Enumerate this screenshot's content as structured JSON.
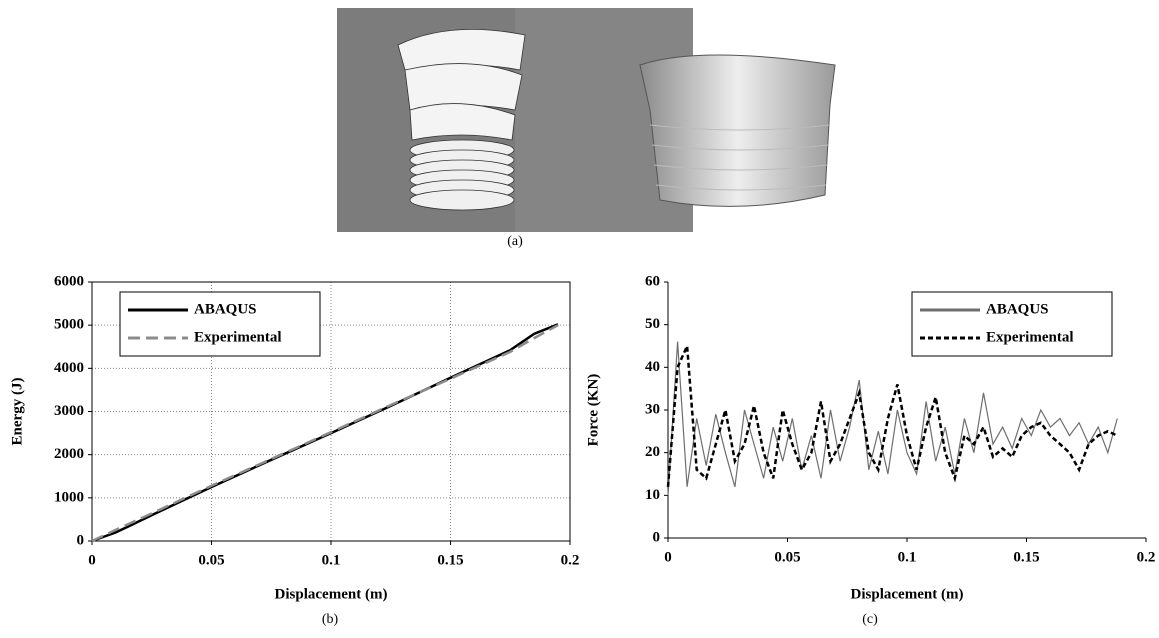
{
  "figure": {
    "panel_a_caption": "(a)"
  },
  "chart_data": [
    {
      "type": "line",
      "caption": "(b)",
      "xlabel": "Displacement (m)",
      "ylabel": "Energy (J)",
      "x": [
        0,
        0.01,
        0.025,
        0.05,
        0.075,
        0.1,
        0.125,
        0.15,
        0.175,
        0.185,
        0.195
      ],
      "series": [
        {
          "name": "ABAQUS",
          "color": "#000000",
          "style": "solid",
          "values": [
            0,
            200,
            600,
            1250,
            1880,
            2500,
            3130,
            3780,
            4420,
            4800,
            5020
          ]
        },
        {
          "name": "Experimental",
          "color": "#8c8c8c",
          "style": "dashed",
          "values": [
            0,
            260,
            640,
            1280,
            1900,
            2520,
            3150,
            3760,
            4380,
            4700,
            5000
          ]
        }
      ],
      "xlim": [
        0,
        0.2
      ],
      "ylim": [
        0,
        6000
      ],
      "xticks": [
        0,
        0.05,
        0.1,
        0.15,
        0.2
      ],
      "yticks": [
        0,
        1000,
        2000,
        3000,
        4000,
        5000,
        6000
      ],
      "grid": true,
      "legend": "upper left"
    },
    {
      "type": "line",
      "caption": "(c)",
      "xlabel": "Displacement (m)",
      "ylabel": "Force (KN)",
      "x": [
        0,
        0.004,
        0.008,
        0.012,
        0.016,
        0.02,
        0.024,
        0.028,
        0.032,
        0.036,
        0.04,
        0.044,
        0.048,
        0.052,
        0.056,
        0.06,
        0.064,
        0.068,
        0.072,
        0.076,
        0.08,
        0.084,
        0.088,
        0.092,
        0.096,
        0.1,
        0.104,
        0.108,
        0.112,
        0.116,
        0.12,
        0.124,
        0.128,
        0.132,
        0.136,
        0.14,
        0.144,
        0.148,
        0.152,
        0.156,
        0.16,
        0.164,
        0.168,
        0.172,
        0.176,
        0.18,
        0.184,
        0.188
      ],
      "series": [
        {
          "name": "ABAQUS",
          "color": "#6e6e6e",
          "style": "solid",
          "values": [
            10,
            46,
            12,
            28,
            17,
            29,
            20,
            12,
            30,
            22,
            14,
            26,
            18,
            28,
            16,
            24,
            14,
            30,
            18,
            26,
            37,
            16,
            25,
            15,
            30,
            20,
            15,
            32,
            18,
            26,
            15,
            28,
            20,
            34,
            22,
            26,
            21,
            28,
            24,
            30,
            26,
            28,
            24,
            27,
            22,
            26,
            20,
            28
          ]
        },
        {
          "name": "Experimental",
          "color": "#000000",
          "style": "dashed",
          "values": [
            12,
            40,
            45,
            16,
            14,
            22,
            30,
            18,
            22,
            31,
            20,
            14,
            30,
            22,
            16,
            20,
            32,
            18,
            22,
            28,
            34,
            20,
            16,
            28,
            36,
            24,
            16,
            26,
            33,
            20,
            14,
            24,
            22,
            26,
            19,
            21,
            19,
            24,
            26,
            27,
            24,
            22,
            20,
            16,
            22,
            24,
            25,
            24
          ]
        }
      ],
      "xlim": [
        0,
        0.2
      ],
      "ylim": [
        0,
        60
      ],
      "xticks": [
        0,
        0.05,
        0.1,
        0.15,
        0.2
      ],
      "yticks": [
        0,
        10,
        20,
        30,
        40,
        50,
        60
      ],
      "grid": false,
      "legend": "upper right"
    }
  ]
}
